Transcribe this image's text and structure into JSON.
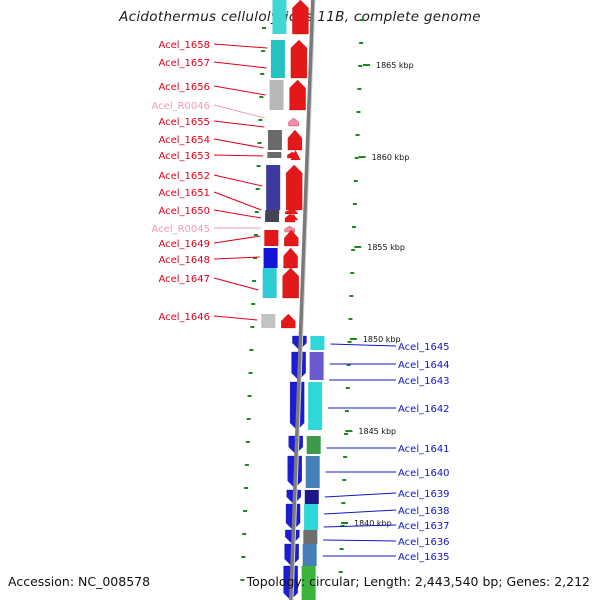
{
  "title": "Acidothermus cellulolyticus 11B, complete genome",
  "footer": {
    "accession": "Accession: NC_008578",
    "summary": "Topology: circular; Length: 2,443,540 bp; Genes: 2,212"
  },
  "colors": {
    "forward_label": "#e0001b",
    "rna_label": "#f29ab8",
    "reverse_label": "#1018c8",
    "tick": "#1e8a1e",
    "axis": "#7a7a7a"
  },
  "scale_labels": [
    "1865 kbp",
    "1860 kbp",
    "1855 kbp",
    "1850 kbp",
    "1845 kbp",
    "1840 kbp"
  ],
  "forward_genes": [
    {
      "name": "Acel_1658",
      "kind": "cds"
    },
    {
      "name": "Acel_1657",
      "kind": "cds"
    },
    {
      "name": "Acel_1656",
      "kind": "cds"
    },
    {
      "name": "Acel_R0046",
      "kind": "rna"
    },
    {
      "name": "Acel_1655",
      "kind": "cds"
    },
    {
      "name": "Acel_1654",
      "kind": "cds"
    },
    {
      "name": "Acel_1653",
      "kind": "cds"
    },
    {
      "name": "Acel_1652",
      "kind": "cds"
    },
    {
      "name": "Acel_1651",
      "kind": "cds"
    },
    {
      "name": "Acel_1650",
      "kind": "cds"
    },
    {
      "name": "Acel_R0045",
      "kind": "rna"
    },
    {
      "name": "Acel_1649",
      "kind": "cds"
    },
    {
      "name": "Acel_1648",
      "kind": "cds"
    },
    {
      "name": "Acel_1647",
      "kind": "cds"
    },
    {
      "name": "Acel_1646",
      "kind": "cds"
    }
  ],
  "reverse_genes": [
    {
      "name": "Acel_1645"
    },
    {
      "name": "Acel_1644"
    },
    {
      "name": "Acel_1643"
    },
    {
      "name": "Acel_1642"
    },
    {
      "name": "Acel_1641"
    },
    {
      "name": "Acel_1640"
    },
    {
      "name": "Acel_1639"
    },
    {
      "name": "Acel_1638"
    },
    {
      "name": "Acel_1637"
    },
    {
      "name": "Acel_1636"
    },
    {
      "name": "Acel_1635"
    }
  ]
}
